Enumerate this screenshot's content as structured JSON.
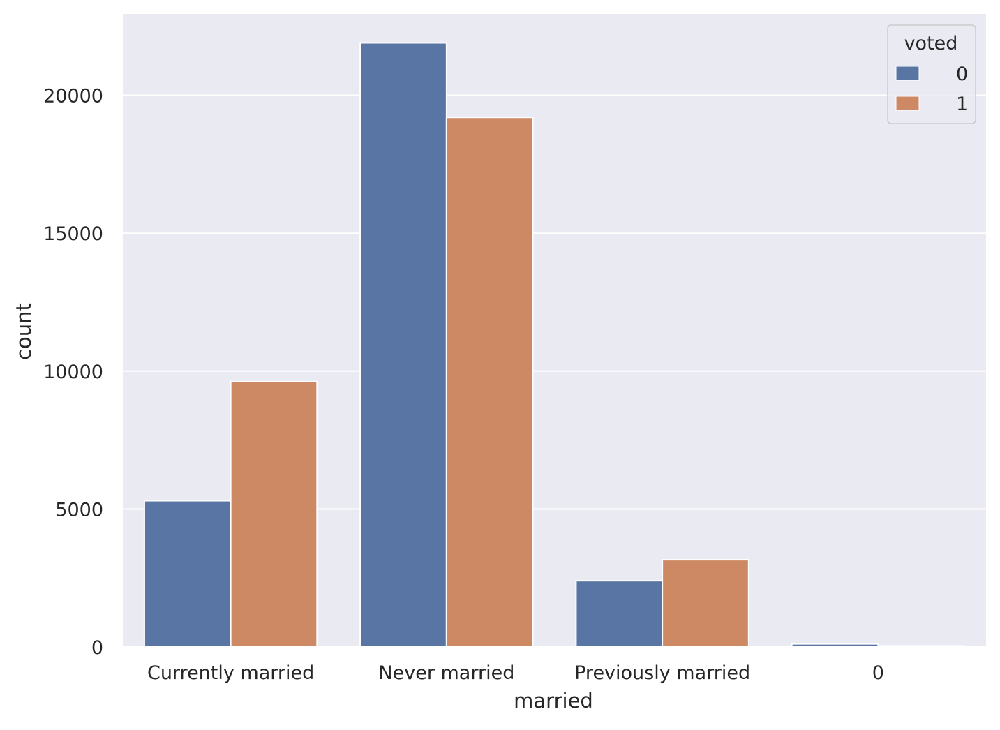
{
  "chart_data": {
    "type": "bar",
    "title": "",
    "xlabel": "married",
    "ylabel": "count",
    "categories": [
      "Currently married",
      "Never married",
      "Previously married",
      "0"
    ],
    "series": [
      {
        "name": "0",
        "color": "#5975a4",
        "values": [
          5300,
          21900,
          2400,
          110
        ]
      },
      {
        "name": "1",
        "color": "#cc8963",
        "values": [
          9620,
          19200,
          3160,
          40
        ]
      }
    ],
    "ylim": [
      0,
      22950
    ],
    "yticks": [
      0,
      5000,
      10000,
      15000,
      20000
    ],
    "grid": true,
    "legend": {
      "title": "voted",
      "placement": "top-right"
    },
    "colors": {
      "plot_background": "#eaeaf2",
      "grid": "#ffffff",
      "bar_edge": "#ffffff"
    }
  }
}
